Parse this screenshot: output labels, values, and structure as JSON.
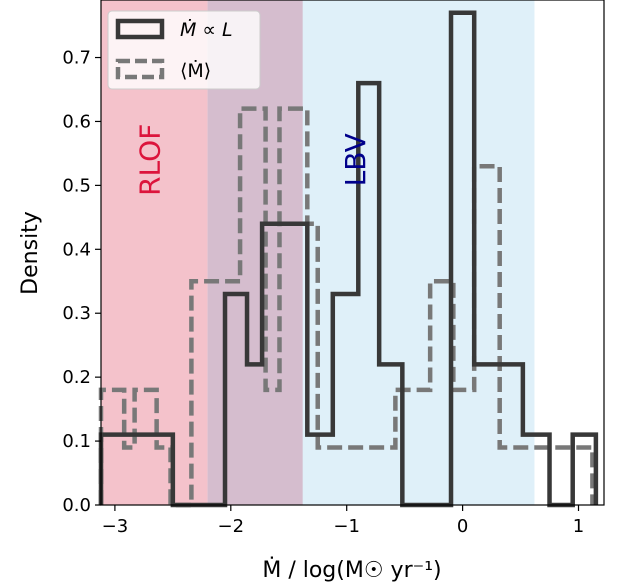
{
  "chart_data": {
    "type": "histogram",
    "xlabel": "Ṁ / log(M☉ yr⁻¹)",
    "ylabel": "Density",
    "xlim": [
      -3.12,
      1.22
    ],
    "ylim": [
      0.0,
      0.79
    ],
    "xticks": [
      -3,
      -2,
      -1,
      0,
      1
    ],
    "yticks": [
      0.0,
      0.1,
      0.2,
      0.3,
      0.4,
      0.5,
      0.6,
      0.7
    ],
    "xtick_labels": [
      "−3",
      "−2",
      "−1",
      "0",
      "1"
    ],
    "ytick_labels": [
      "0.0",
      "0.1",
      "0.2",
      "0.3",
      "0.4",
      "0.5",
      "0.6",
      "0.7"
    ],
    "regions": [
      {
        "label": "RLOF",
        "x0": -3.12,
        "x1": -1.38,
        "color": "#f4c2cb",
        "label_color": "#dc143c"
      },
      {
        "label": "LBV",
        "x0": -2.2,
        "x1": 0.62,
        "color": "#dff0f9",
        "label_color": "#00008b"
      }
    ],
    "overlap_color": "#d5bdce",
    "legend_position": "upper-left",
    "series": [
      {
        "name": "Ṁ ∝ L",
        "style": "solid",
        "color": "#383838",
        "edges": [
          -3.12,
          -2.5,
          -2.2,
          -2.05,
          -1.86,
          -1.73,
          -1.34,
          -1.12,
          -0.9,
          -0.72,
          -0.52,
          -0.3,
          -0.1,
          0.1,
          0.52,
          0.75,
          0.95,
          1.15
        ],
        "values": [
          0.11,
          0.0,
          0.0,
          0.33,
          0.22,
          0.44,
          0.11,
          0.33,
          0.66,
          0.22,
          0.0,
          0.0,
          0.77,
          0.22,
          0.11,
          0.0,
          0.11
        ]
      },
      {
        "name": "⟨Ṁ⟩",
        "style": "dashed",
        "color": "#787878",
        "edges": [
          -3.12,
          -2.92,
          -2.83,
          -2.64,
          -2.52,
          -2.34,
          -2.02,
          -1.92,
          -1.7,
          -1.58,
          -1.34,
          -1.25,
          -0.95,
          -0.58,
          -0.28,
          -0.08,
          0.1,
          0.32,
          0.5,
          1.12
        ],
        "values": [
          0.18,
          0.09,
          0.18,
          0.09,
          0.0,
          0.35,
          0.35,
          0.62,
          0.18,
          0.62,
          0.44,
          0.09,
          0.09,
          0.18,
          0.35,
          0.18,
          0.53,
          0.09,
          0.09
        ]
      }
    ]
  }
}
